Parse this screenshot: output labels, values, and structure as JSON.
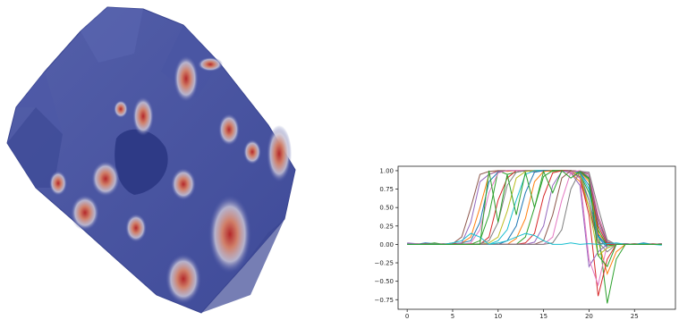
{
  "mesh_render": {
    "name": "3D surface mesh render",
    "base_color": "#4a56a6",
    "hot_color": "#b4282a"
  },
  "chart_data": {
    "type": "line",
    "xlim": [
      -1,
      29.5
    ],
    "ylim": [
      -0.88,
      1.06
    ],
    "xticks": [
      0,
      5,
      10,
      15,
      20,
      25
    ],
    "yticks": [
      -0.75,
      -0.5,
      -0.25,
      0.0,
      0.25,
      0.5,
      0.75,
      1.0
    ],
    "xtick_labels": [
      "0",
      "5",
      "10",
      "15",
      "20",
      "25"
    ],
    "ytick_labels": [
      "−0.75",
      "−0.50",
      "−0.25",
      "0.00",
      "0.25",
      "0.50",
      "0.75",
      "1.00"
    ],
    "grid": false,
    "legend": "none",
    "x": [
      0,
      1,
      2,
      3,
      4,
      5,
      6,
      7,
      8,
      9,
      10,
      11,
      12,
      13,
      14,
      15,
      16,
      17,
      18,
      19,
      20,
      21,
      22,
      23,
      24,
      25,
      26,
      27,
      28
    ],
    "series": [
      {
        "color": "#1f77b4",
        "values": [
          0.01,
          0.0,
          0.02,
          0.01,
          0.0,
          0.01,
          0.02,
          0.05,
          0.3,
          0.85,
          0.98,
          1.0,
          1.0,
          0.99,
          1.0,
          1.0,
          1.0,
          0.99,
          0.98,
          0.9,
          0.6,
          0.1,
          -0.05,
          0.0,
          0.01,
          0.0,
          0.02,
          0.0,
          0.01
        ]
      },
      {
        "color": "#ff7f0e",
        "values": [
          0.0,
          0.01,
          0.0,
          0.0,
          0.01,
          0.0,
          0.02,
          0.1,
          0.5,
          0.95,
          1.0,
          0.99,
          1.0,
          1.0,
          0.99,
          1.0,
          0.99,
          1.0,
          0.97,
          0.85,
          0.5,
          0.05,
          -0.4,
          -0.1,
          0.0,
          0.01,
          0.0,
          0.0,
          0.01
        ]
      },
      {
        "color": "#2ca02c",
        "values": [
          0.01,
          0.0,
          0.0,
          0.02,
          0.0,
          0.0,
          0.01,
          0.0,
          0.05,
          0.4,
          1.0,
          0.95,
          0.98,
          1.0,
          1.0,
          1.0,
          0.99,
          1.0,
          1.0,
          0.95,
          0.7,
          0.2,
          -0.8,
          -0.2,
          0.0,
          0.0,
          0.01,
          0.0,
          0.0
        ]
      },
      {
        "color": "#d62728",
        "values": [
          0.0,
          0.0,
          0.01,
          0.0,
          0.0,
          0.02,
          0.0,
          0.01,
          0.0,
          0.1,
          0.6,
          0.9,
          1.0,
          1.0,
          1.0,
          0.99,
          1.0,
          1.0,
          0.99,
          0.9,
          0.4,
          -0.7,
          -0.2,
          0.0,
          0.01,
          0.0,
          0.0,
          0.01,
          0.0
        ]
      },
      {
        "color": "#9467bd",
        "values": [
          0.02,
          0.01,
          0.0,
          0.0,
          0.01,
          0.0,
          0.02,
          0.3,
          0.85,
          0.95,
          0.99,
          1.0,
          1.0,
          1.0,
          0.98,
          1.0,
          1.0,
          1.0,
          0.97,
          0.8,
          -0.3,
          -0.1,
          0.0,
          0.0,
          0.01,
          0.0,
          0.0,
          0.0,
          0.01
        ]
      },
      {
        "color": "#8c564b",
        "values": [
          0.0,
          0.0,
          0.01,
          0.0,
          0.0,
          0.01,
          0.1,
          0.5,
          0.95,
          0.99,
          1.0,
          1.0,
          1.0,
          0.99,
          1.0,
          1.0,
          1.0,
          1.0,
          0.98,
          0.92,
          0.5,
          0.02,
          0.0,
          0.0,
          0.0,
          0.01,
          0.0,
          0.0,
          0.0
        ]
      },
      {
        "color": "#e377c2",
        "values": [
          0.0,
          0.01,
          0.0,
          0.0,
          0.0,
          0.0,
          0.0,
          0.02,
          0.2,
          0.7,
          0.97,
          1.0,
          1.0,
          1.0,
          1.0,
          0.99,
          1.0,
          0.99,
          0.98,
          0.9,
          -0.2,
          -0.55,
          0.0,
          0.0,
          0.0,
          0.0,
          0.0,
          0.0,
          0.0
        ]
      },
      {
        "color": "#7f7f7f",
        "values": [
          0.0,
          0.0,
          0.0,
          0.01,
          0.0,
          0.0,
          0.0,
          0.0,
          0.01,
          0.05,
          0.3,
          0.8,
          0.98,
          1.0,
          1.0,
          1.0,
          1.0,
          1.0,
          1.0,
          0.96,
          0.6,
          0.03,
          -0.1,
          0.0,
          0.0,
          0.0,
          0.0,
          0.0,
          0.0
        ]
      },
      {
        "color": "#bcbd22",
        "values": [
          0.0,
          0.0,
          0.0,
          0.0,
          0.0,
          0.0,
          0.0,
          0.0,
          0.0,
          0.02,
          0.1,
          0.45,
          0.9,
          0.99,
          1.0,
          1.0,
          1.0,
          1.0,
          0.99,
          0.95,
          0.5,
          -0.15,
          -0.05,
          0.0,
          0.0,
          0.0,
          0.0,
          0.0,
          0.0
        ]
      },
      {
        "color": "#17becf",
        "values": [
          0.0,
          0.0,
          0.0,
          0.0,
          0.0,
          0.0,
          0.0,
          0.0,
          0.0,
          0.0,
          0.05,
          0.2,
          0.6,
          0.95,
          1.0,
          1.0,
          1.0,
          1.0,
          1.0,
          0.97,
          0.75,
          0.1,
          0.0,
          0.0,
          0.0,
          0.0,
          0.0,
          0.0,
          0.0
        ]
      },
      {
        "color": "#1f77b4",
        "values": [
          0.0,
          0.0,
          0.0,
          0.0,
          0.0,
          0.0,
          0.0,
          0.0,
          0.0,
          0.0,
          0.0,
          0.05,
          0.25,
          0.7,
          0.98,
          1.0,
          1.0,
          1.0,
          1.0,
          0.98,
          0.8,
          0.12,
          -0.02,
          0.0,
          0.0,
          0.0,
          0.0,
          0.0,
          0.0
        ]
      },
      {
        "color": "#ff7f0e",
        "values": [
          0.0,
          0.0,
          0.0,
          0.0,
          0.0,
          0.0,
          0.0,
          0.0,
          0.0,
          0.0,
          0.0,
          0.0,
          0.08,
          0.35,
          0.85,
          0.99,
          1.0,
          1.0,
          1.0,
          0.99,
          0.85,
          0.15,
          0.0,
          0.0,
          0.0,
          0.0,
          0.0,
          0.0,
          0.0
        ]
      },
      {
        "color": "#2ca02c",
        "values": [
          0.0,
          0.0,
          0.0,
          0.0,
          0.0,
          0.0,
          0.0,
          0.0,
          0.0,
          0.0,
          0.0,
          0.0,
          0.0,
          0.1,
          0.5,
          0.92,
          1.0,
          1.0,
          1.0,
          0.99,
          0.88,
          0.2,
          -0.02,
          0.0,
          0.0,
          0.0,
          0.0,
          0.0,
          0.0
        ]
      },
      {
        "color": "#d62728",
        "values": [
          0.0,
          0.0,
          0.0,
          0.0,
          0.0,
          0.0,
          0.0,
          0.0,
          0.0,
          0.0,
          0.0,
          0.0,
          0.0,
          0.02,
          0.15,
          0.65,
          0.97,
          1.0,
          1.0,
          0.99,
          0.9,
          0.25,
          0.0,
          0.0,
          0.0,
          0.0,
          0.0,
          0.0,
          0.0
        ]
      },
      {
        "color": "#9467bd",
        "values": [
          0.0,
          0.0,
          0.0,
          0.0,
          0.0,
          0.0,
          0.0,
          0.0,
          0.0,
          0.0,
          0.0,
          0.0,
          0.0,
          0.0,
          0.03,
          0.25,
          0.8,
          0.99,
          1.0,
          0.99,
          0.92,
          0.3,
          0.02,
          0.0,
          0.0,
          0.0,
          0.0,
          0.0,
          0.0
        ]
      },
      {
        "color": "#8c564b",
        "values": [
          0.0,
          0.0,
          0.0,
          0.0,
          0.0,
          0.0,
          0.0,
          0.0,
          0.0,
          0.0,
          0.0,
          0.0,
          0.0,
          0.0,
          0.0,
          0.05,
          0.4,
          0.9,
          1.0,
          0.99,
          0.95,
          0.35,
          0.03,
          0.0,
          0.0,
          0.0,
          0.0,
          0.0,
          0.0
        ]
      },
      {
        "color": "#e377c2",
        "values": [
          0.0,
          0.0,
          0.0,
          0.0,
          0.0,
          0.0,
          0.0,
          0.0,
          0.0,
          0.0,
          0.0,
          0.0,
          0.0,
          0.0,
          0.0,
          0.0,
          0.1,
          0.6,
          0.98,
          1.0,
          0.96,
          0.4,
          0.05,
          0.0,
          0.0,
          0.0,
          0.0,
          0.0,
          0.0
        ]
      },
      {
        "color": "#7f7f7f",
        "values": [
          0.0,
          0.0,
          0.0,
          0.0,
          0.0,
          0.0,
          0.0,
          0.0,
          0.0,
          0.0,
          0.0,
          0.0,
          0.0,
          0.0,
          0.0,
          0.0,
          0.02,
          0.2,
          0.75,
          0.99,
          0.98,
          0.5,
          0.06,
          0.0,
          0.0,
          0.0,
          0.0,
          0.0,
          0.0
        ]
      },
      {
        "color": "#17becf",
        "values": [
          0.0,
          0.0,
          0.0,
          0.0,
          0.0,
          0.02,
          0.05,
          0.15,
          0.1,
          0.0,
          0.02,
          0.05,
          0.1,
          0.15,
          0.12,
          0.05,
          0.0,
          0.0,
          0.02,
          0.0,
          0.01,
          0.0,
          0.01,
          0.02,
          0.0,
          0.0,
          0.01,
          0.0,
          -0.01
        ]
      },
      {
        "color": "#2ca02c",
        "values": [
          0.0,
          0.0,
          0.0,
          0.0,
          0.0,
          0.0,
          0.0,
          0.0,
          0.0,
          1.0,
          0.3,
          0.95,
          0.4,
          0.98,
          0.5,
          0.99,
          0.7,
          1.0,
          0.9,
          0.99,
          0.9,
          -0.15,
          -0.3,
          0.0,
          0.0,
          0.0,
          0.0,
          0.0,
          0.0
        ]
      }
    ]
  }
}
